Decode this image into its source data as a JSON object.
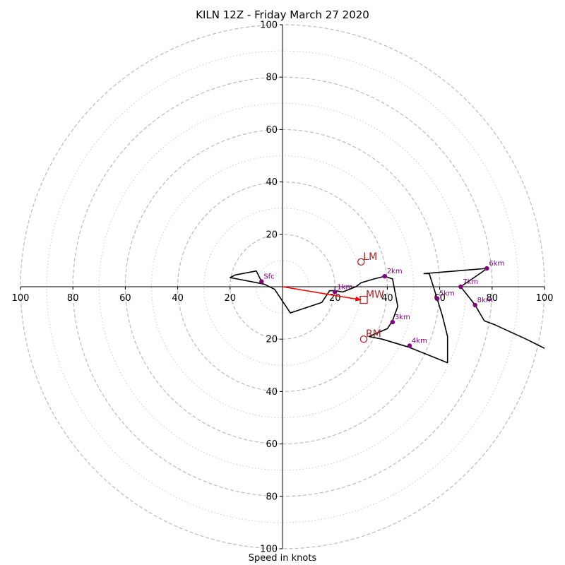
{
  "chart_data": {
    "type": "hodograph",
    "title": "KILN 12Z - Friday March 27 2020",
    "xlabel": "Speed in knots",
    "range": [
      -100,
      100
    ],
    "ring_major": [
      20,
      40,
      60,
      80,
      100
    ],
    "ring_minor": [
      10,
      30,
      50,
      70,
      90
    ],
    "x_ticks": [
      {
        "v": -100,
        "label": "100"
      },
      {
        "v": -80,
        "label": "80"
      },
      {
        "v": -60,
        "label": "60"
      },
      {
        "v": -40,
        "label": "40"
      },
      {
        "v": -20,
        "label": "20"
      },
      {
        "v": 20,
        "label": "20"
      },
      {
        "v": 40,
        "label": "40"
      },
      {
        "v": 60,
        "label": "60"
      },
      {
        "v": 80,
        "label": "80"
      },
      {
        "v": 100,
        "label": "100"
      }
    ],
    "y_ticks": [
      {
        "v": 100,
        "label": "100"
      },
      {
        "v": 80,
        "label": "80"
      },
      {
        "v": 60,
        "label": "60"
      },
      {
        "v": 40,
        "label": "40"
      },
      {
        "v": 20,
        "label": "20"
      },
      {
        "v": -20,
        "label": "20"
      },
      {
        "v": -40,
        "label": "40"
      },
      {
        "v": -60,
        "label": "60"
      },
      {
        "v": -80,
        "label": "80"
      },
      {
        "v": -100,
        "label": "100"
      }
    ],
    "trace": [
      [
        -8,
        2
      ],
      [
        -10,
        6
      ],
      [
        -18,
        4.5
      ],
      [
        -20,
        3.5
      ],
      [
        -7,
        1
      ],
      [
        -3,
        -1
      ],
      [
        -1,
        -4
      ],
      [
        3,
        -10
      ],
      [
        15,
        -6
      ],
      [
        18,
        -1.5
      ],
      [
        20,
        -1.5
      ],
      [
        23,
        -2
      ],
      [
        28,
        0
      ],
      [
        30,
        1.5
      ],
      [
        35,
        3
      ],
      [
        39,
        4
      ],
      [
        42,
        3
      ],
      [
        44,
        -7.5
      ],
      [
        42,
        -13
      ],
      [
        40,
        -16
      ],
      [
        33,
        -19
      ],
      [
        38,
        -20
      ],
      [
        48,
        -23
      ],
      [
        63,
        -29
      ],
      [
        63,
        -19
      ],
      [
        61,
        -11
      ],
      [
        59,
        -4.5
      ],
      [
        56,
        5
      ],
      [
        54,
        5
      ],
      [
        78,
        7
      ],
      [
        76,
        5.5
      ],
      [
        68,
        0
      ],
      [
        72,
        -5
      ],
      [
        73.5,
        -7
      ],
      [
        77,
        -13
      ],
      [
        81,
        -14.5
      ],
      [
        93,
        -20
      ],
      [
        100,
        -23.5
      ]
    ],
    "height_points": [
      {
        "label": "Sfc",
        "x": -8,
        "y": 2
      },
      {
        "label": "1km",
        "x": 20,
        "y": -2
      },
      {
        "label": "2km",
        "x": 39,
        "y": 4
      },
      {
        "label": "3km",
        "x": 42,
        "y": -13.5
      },
      {
        "label": "4km",
        "x": 48.5,
        "y": -22.5
      },
      {
        "label": "5km",
        "x": 59,
        "y": -4.5
      },
      {
        "label": "7km",
        "x": 68,
        "y": 0
      },
      {
        "label": "6km",
        "x": 78,
        "y": 7
      },
      {
        "label": "8km",
        "x": 73.5,
        "y": -7
      }
    ],
    "motion_points": [
      {
        "label": "LM",
        "x": 30,
        "y": 9.5,
        "marker": "circle"
      },
      {
        "label": "MW",
        "x": 31,
        "y": -5,
        "marker": "square"
      },
      {
        "label": "RM",
        "x": 31,
        "y": -20,
        "marker": "circle"
      }
    ],
    "mean_wind_vector": {
      "from": [
        0,
        0
      ],
      "to": [
        30,
        -5
      ]
    },
    "colors": {
      "trace": "#000000",
      "height_marker": "#800080",
      "motion": "#b22222",
      "vector": "#ff0000",
      "grid": "#bbbbbb"
    }
  }
}
